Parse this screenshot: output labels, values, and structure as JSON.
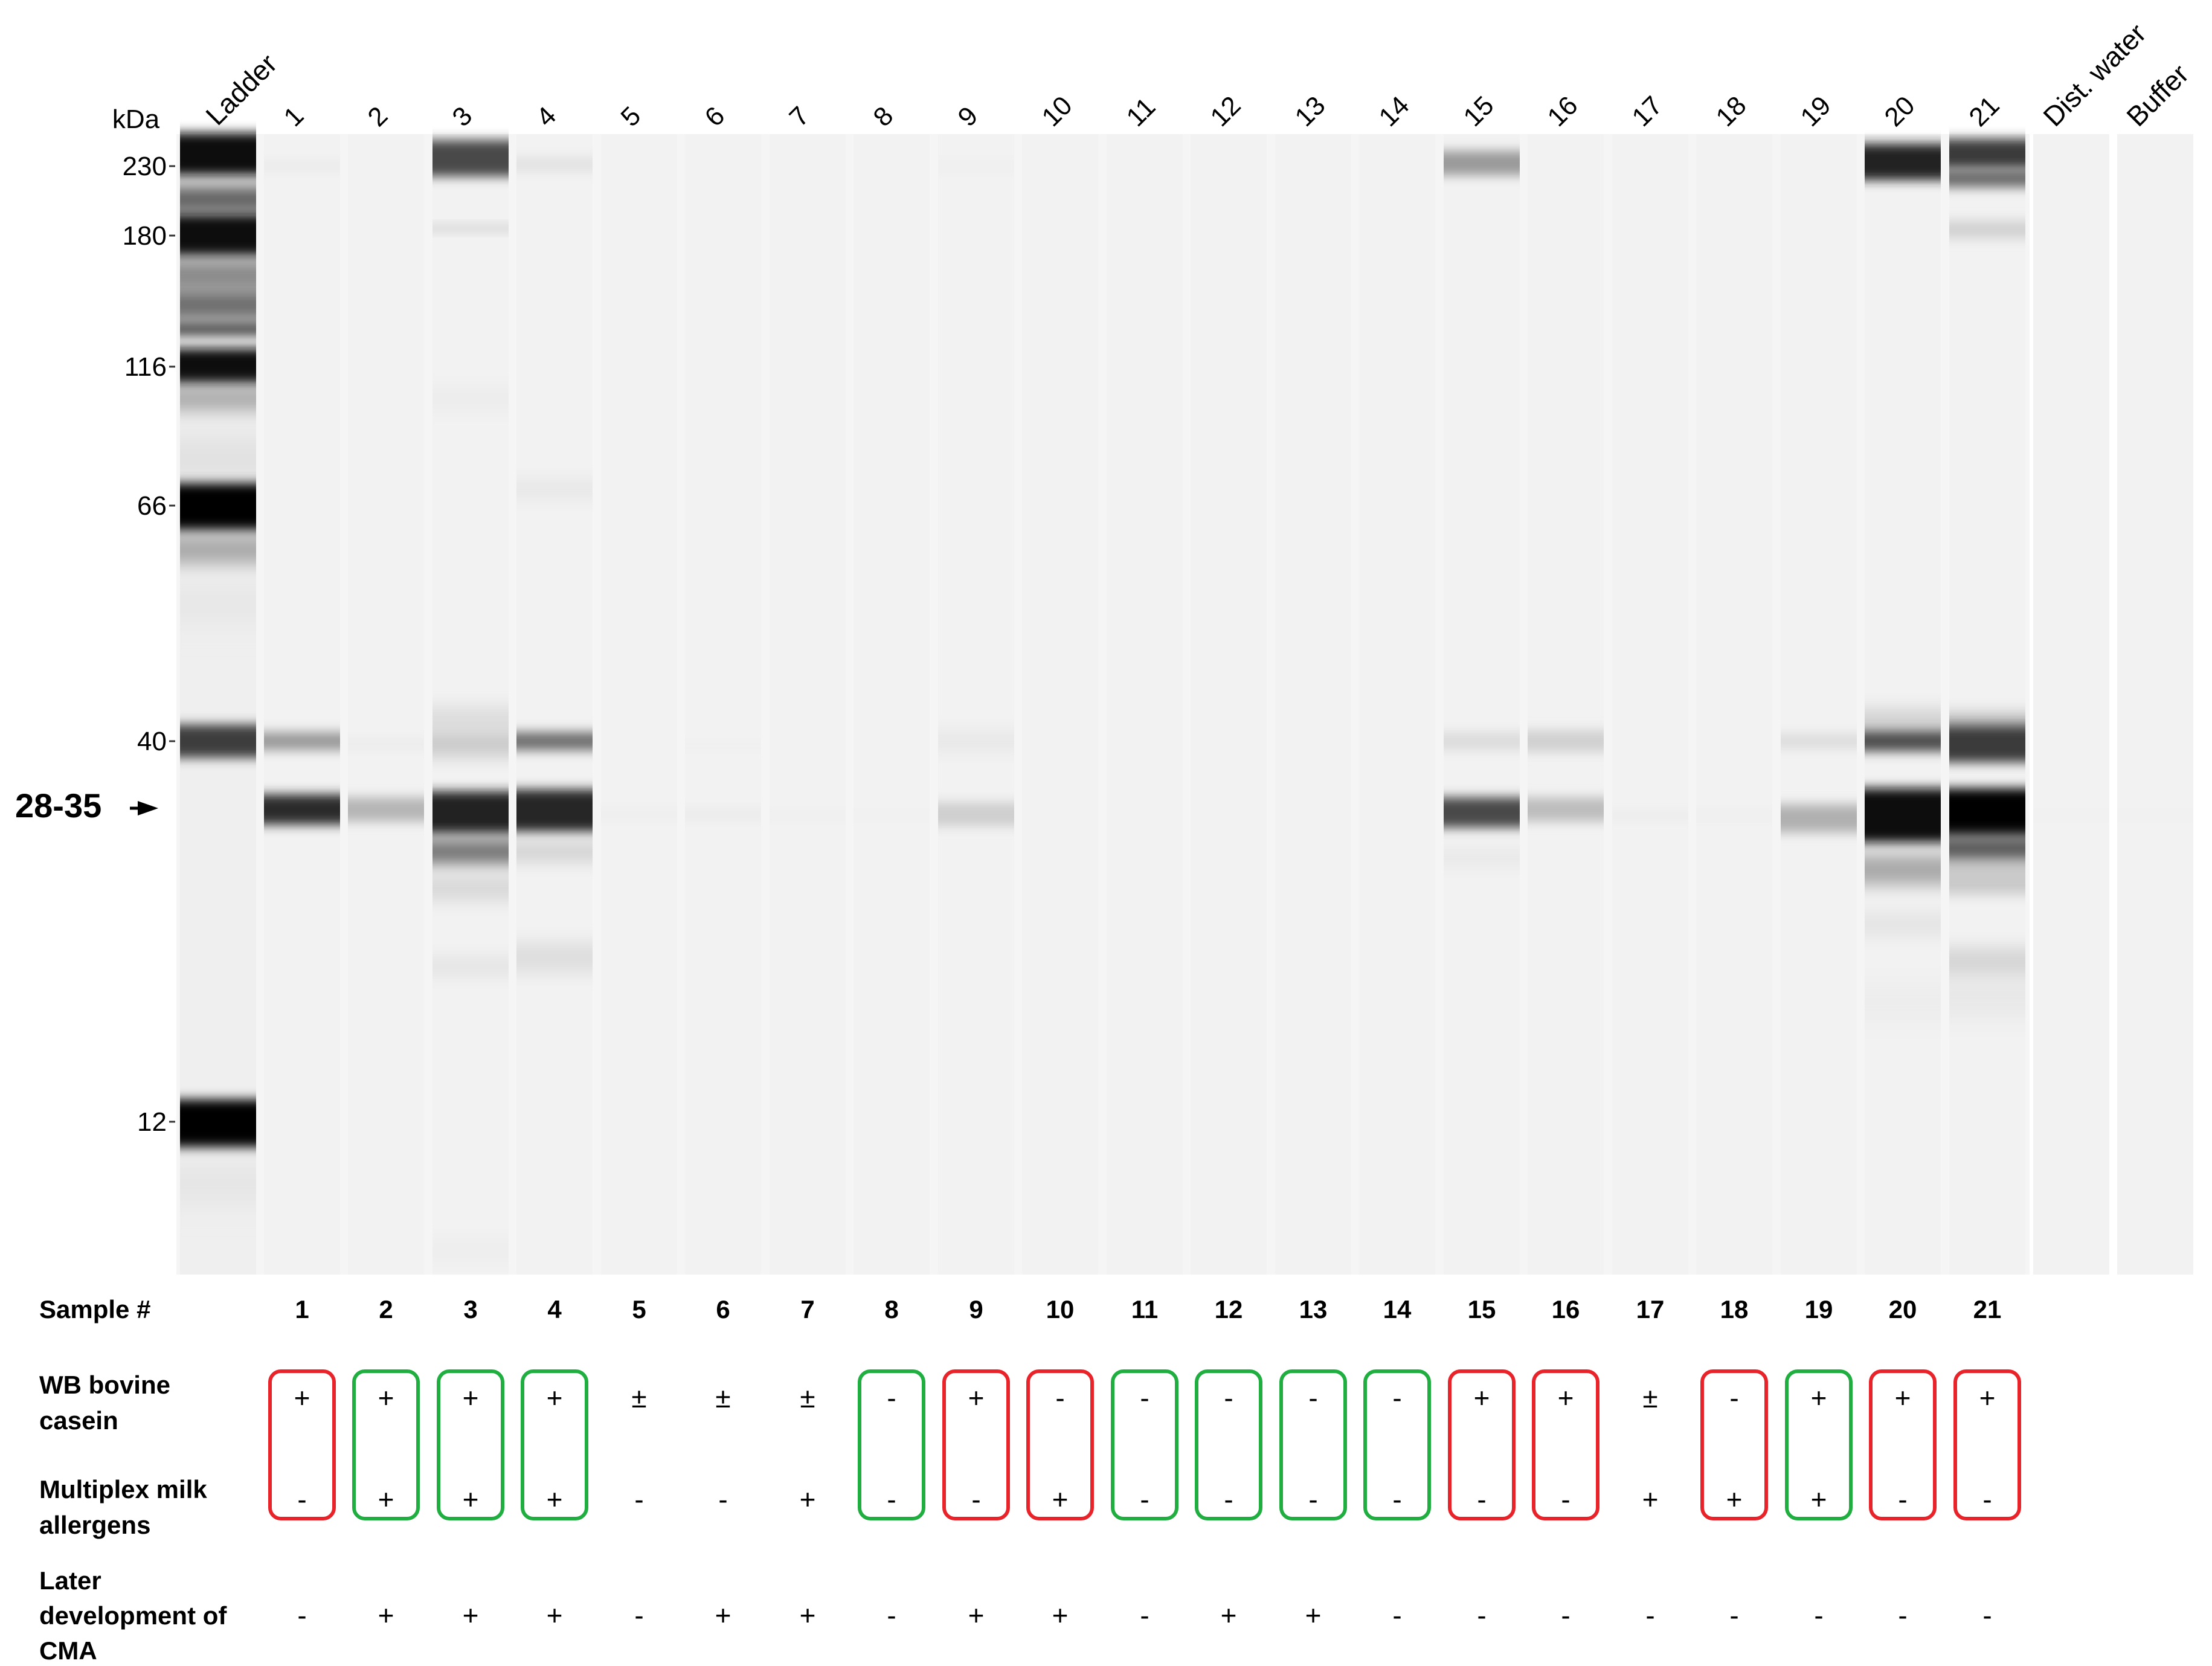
{
  "header": {
    "kda_label": "kDa",
    "ladder_label": "Ladder",
    "dist_water_label": "Dist. water",
    "buffer_label": "Buffer",
    "arrow_label": "28-35"
  },
  "mw_markers": [
    {
      "label": "230",
      "kda": 230
    },
    {
      "label": "180",
      "kda": 180
    },
    {
      "label": "116",
      "kda": 116
    },
    {
      "label": "66",
      "kda": 66
    },
    {
      "label": "40",
      "kda": 40
    },
    {
      "label": "12",
      "kda": 12
    }
  ],
  "lane_numbers": [
    "1",
    "2",
    "3",
    "4",
    "5",
    "6",
    "7",
    "8",
    "9",
    "10",
    "11",
    "12",
    "13",
    "14",
    "15",
    "16",
    "17",
    "18",
    "19",
    "20",
    "21"
  ],
  "table": {
    "sample_label": "Sample #",
    "wb_label_1": "WB bovine",
    "wb_label_2": "casein",
    "mx_label_1": "Multiplex milk",
    "mx_label_2": "allergens",
    "later_label_1": "Later",
    "later_label_2": "development of",
    "later_label_3": "CMA",
    "wb": [
      "+",
      "+",
      "+",
      "+",
      "±",
      "±",
      "±",
      "-",
      "+",
      "-",
      "-",
      "-",
      "-",
      "-",
      "+",
      "+",
      "±",
      "-",
      "+",
      "+",
      "+"
    ],
    "mx": [
      "-",
      "+",
      "+",
      "+",
      "-",
      "-",
      "+",
      "-",
      "-",
      "+",
      "-",
      "-",
      "-",
      "-",
      "-",
      "-",
      "+",
      "+",
      "+",
      "-",
      "-"
    ],
    "later": [
      "-",
      "+",
      "+",
      "+",
      "-",
      "+",
      "+",
      "-",
      "+",
      "+",
      "-",
      "+",
      "+",
      "-",
      "-",
      "-",
      "-",
      "-",
      "-",
      "-",
      "-"
    ],
    "box": [
      "red",
      "green",
      "green",
      "green",
      "none",
      "none",
      "none",
      "green",
      "red",
      "red",
      "green",
      "green",
      "green",
      "green",
      "red",
      "red",
      "none",
      "red",
      "green",
      "red",
      "red"
    ]
  },
  "colors": {
    "red": "#e8232a",
    "green": "#1fae3f"
  }
}
